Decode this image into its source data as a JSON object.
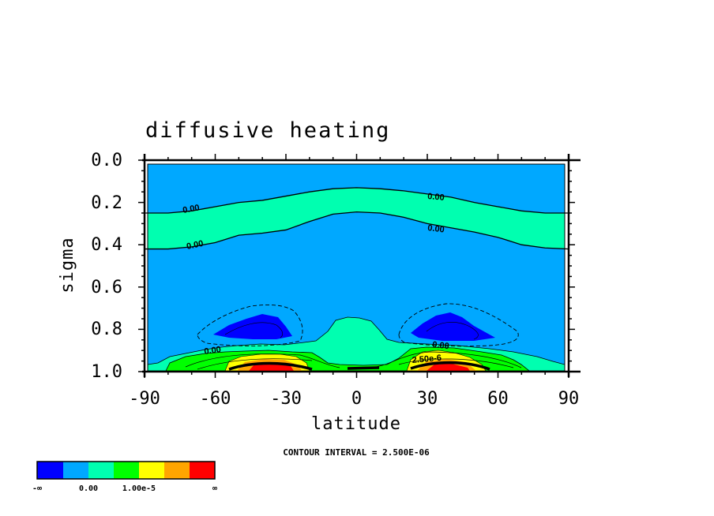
{
  "chart_data": {
    "type": "contour",
    "title": "diffusive heating",
    "xlabel": "latitude",
    "ylabel": "sigma",
    "xlim": [
      -90,
      90
    ],
    "ylim": [
      0.0,
      1.0
    ],
    "y_inverted": true,
    "x_ticks": [
      "-90",
      "-60",
      "-30",
      "0",
      "30",
      "60",
      "90"
    ],
    "y_ticks": [
      "0.0",
      "0.2",
      "0.4",
      "0.6",
      "0.8",
      "1.0"
    ],
    "contour_interval_text": "CONTOUR INTERVAL = 2.500E-06",
    "contour_labels": [
      "0.00",
      "0.00",
      "0.00",
      "0.00",
      "0.00",
      "0.00",
      "2.50e-6"
    ],
    "colorbar": {
      "colors": [
        "#0000ff",
        "#00a8ff",
        "#00ffb0",
        "#00ff00",
        "#ffff00",
        "#ffa500",
        "#ff0000"
      ],
      "labels": [
        "-∞",
        "0.00",
        "1.00e-5",
        "∞"
      ]
    },
    "lines": [
      {
        "name": "upper zero contour",
        "points": [
          [
            -90,
            0.25
          ],
          [
            -80,
            0.25
          ],
          [
            -70,
            0.24
          ],
          [
            -60,
            0.22
          ],
          [
            -50,
            0.2
          ],
          [
            -40,
            0.19
          ],
          [
            -30,
            0.17
          ],
          [
            -20,
            0.15
          ],
          [
            -10,
            0.135
          ],
          [
            0,
            0.13
          ],
          [
            10,
            0.135
          ],
          [
            20,
            0.145
          ],
          [
            30,
            0.16
          ],
          [
            40,
            0.175
          ],
          [
            50,
            0.2
          ],
          [
            60,
            0.22
          ],
          [
            70,
            0.24
          ],
          [
            80,
            0.25
          ],
          [
            90,
            0.25
          ]
        ]
      },
      {
        "name": "lower zero contour",
        "points": [
          [
            -90,
            0.42
          ],
          [
            -80,
            0.42
          ],
          [
            -70,
            0.41
          ],
          [
            -60,
            0.39
          ],
          [
            -50,
            0.355
          ],
          [
            -40,
            0.345
          ],
          [
            -30,
            0.33
          ],
          [
            -20,
            0.29
          ],
          [
            -10,
            0.255
          ],
          [
            0,
            0.245
          ],
          [
            10,
            0.25
          ],
          [
            20,
            0.27
          ],
          [
            30,
            0.3
          ],
          [
            40,
            0.32
          ],
          [
            50,
            0.34
          ],
          [
            60,
            0.365
          ],
          [
            70,
            0.4
          ],
          [
            80,
            0.415
          ],
          [
            90,
            0.42
          ]
        ]
      }
    ]
  }
}
